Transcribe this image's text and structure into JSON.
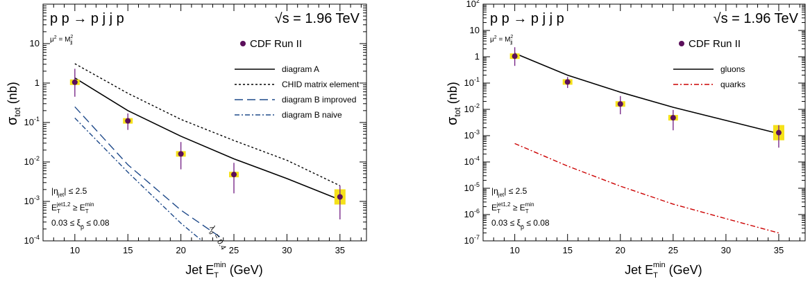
{
  "chart_data": [
    {
      "type": "scatter",
      "process": "p p → p j j p",
      "energy": "√s = 1.96 TeV",
      "scale": "μ² = M²jj",
      "xlabel": "Jet E_T^min (GeV)",
      "ylabel": "σ_tot (nb)",
      "y_scale": "log",
      "xlim": [
        7,
        37.5
      ],
      "ylim": [
        0.0001,
        100
      ],
      "x_ticks": [
        10,
        15,
        20,
        25,
        30,
        35
      ],
      "y_ticks": [
        {
          "v": 0.0001,
          "m": "10",
          "e": "-4"
        },
        {
          "v": 0.001,
          "m": "10",
          "e": "-3"
        },
        {
          "v": 0.01,
          "m": "10",
          "e": "-2"
        },
        {
          "v": 0.1,
          "m": "10",
          "e": "-1"
        },
        {
          "v": 1,
          "m": "1",
          "e": ""
        },
        {
          "v": 10,
          "m": "10",
          "e": ""
        }
      ],
      "cuts": [
        "|η_jet| ≤ 2.5",
        "E_T^jet1,2 ≥ E_T^min",
        "0.03 ≤ ξ_p̄ ≤ 0.08"
      ],
      "curve_label": "λ_g = 0.4",
      "legend_placement": "top-right",
      "data_series": {
        "name": "CDF Run II",
        "points": [
          {
            "x": 10,
            "y": 1.05,
            "ylo": 0.45,
            "yhi": 2.3
          },
          {
            "x": 15,
            "y": 0.11,
            "ylo": 0.065,
            "yhi": 0.17
          },
          {
            "x": 20,
            "y": 0.016,
            "ylo": 0.0065,
            "yhi": 0.032
          },
          {
            "x": 25,
            "y": 0.0048,
            "ylo": 0.0016,
            "yhi": 0.0095
          },
          {
            "x": 35,
            "y": 0.0013,
            "ylo": 0.00035,
            "yhi": 0.0025
          }
        ]
      },
      "series": [
        {
          "name": "diagram A",
          "style": "solid",
          "color": "#000000",
          "x": [
            10,
            15,
            20,
            25,
            30,
            35
          ],
          "y": [
            1.35,
            0.2,
            0.045,
            0.012,
            0.0038,
            0.0011
          ]
        },
        {
          "name": "CHID matrix element",
          "style": "dotted",
          "color": "#000000",
          "x": [
            10,
            15,
            20,
            25,
            30,
            35
          ],
          "y": [
            3.1,
            0.55,
            0.12,
            0.035,
            0.011,
            0.0025
          ]
        },
        {
          "name": "diagram B improved",
          "style": "longdash",
          "color": "#1f4a8a",
          "x": [
            10,
            15,
            20,
            24
          ],
          "y": [
            0.25,
            0.0085,
            0.0006,
            0.00011
          ]
        },
        {
          "name": "diagram B naive",
          "style": "dashdot",
          "color": "#1f4a8a",
          "x": [
            10,
            15,
            20,
            22
          ],
          "y": [
            0.13,
            0.0055,
            0.00028,
            0.0001
          ]
        }
      ]
    },
    {
      "type": "scatter",
      "process": "p p → p j j p",
      "energy": "√s = 1.96 TeV",
      "scale": "μ² = M²jj",
      "xlabel": "Jet E_T^min (GeV)",
      "ylabel": "σ_tot (nb)",
      "y_scale": "log",
      "xlim": [
        7,
        37.5
      ],
      "ylim": [
        1e-07,
        100
      ],
      "x_ticks": [
        10,
        15,
        20,
        25,
        30,
        35
      ],
      "y_ticks": [
        {
          "v": 1e-07,
          "m": "10",
          "e": "-7"
        },
        {
          "v": 1e-06,
          "m": "10",
          "e": "-6"
        },
        {
          "v": 1e-05,
          "m": "10",
          "e": "-5"
        },
        {
          "v": 0.0001,
          "m": "10",
          "e": "-4"
        },
        {
          "v": 0.001,
          "m": "10",
          "e": "-3"
        },
        {
          "v": 0.01,
          "m": "10",
          "e": "-2"
        },
        {
          "v": 0.1,
          "m": "10",
          "e": "-1"
        },
        {
          "v": 1,
          "m": "1",
          "e": ""
        },
        {
          "v": 10,
          "m": "10",
          "e": ""
        },
        {
          "v": 100,
          "m": "10",
          "e": "2"
        }
      ],
      "cuts": [
        "|η_jet| ≤ 2.5",
        "E_T^jet1,2 ≥ E_T^min",
        "0.03 ≤ ξ_p̄ ≤ 0.08"
      ],
      "legend_placement": "top-right",
      "data_series": {
        "name": "CDF Run II",
        "points": [
          {
            "x": 10,
            "y": 1.05,
            "ylo": 0.45,
            "yhi": 2.3
          },
          {
            "x": 15,
            "y": 0.11,
            "ylo": 0.065,
            "yhi": 0.17
          },
          {
            "x": 20,
            "y": 0.016,
            "ylo": 0.0065,
            "yhi": 0.032
          },
          {
            "x": 25,
            "y": 0.0048,
            "ylo": 0.0016,
            "yhi": 0.0095
          },
          {
            "x": 35,
            "y": 0.0013,
            "ylo": 0.00035,
            "yhi": 0.0025
          }
        ]
      },
      "series": [
        {
          "name": "gluons",
          "style": "solid",
          "color": "#000000",
          "x": [
            10,
            15,
            20,
            25,
            30,
            35
          ],
          "y": [
            1.35,
            0.2,
            0.045,
            0.012,
            0.0038,
            0.0012
          ]
        },
        {
          "name": "quarks",
          "style": "dashdot",
          "color": "#cc0000",
          "x": [
            10,
            15,
            20,
            25,
            30,
            35
          ],
          "y": [
            0.0005,
            7e-05,
            1.2e-05,
            2.5e-06,
            7e-07,
            2e-07
          ]
        }
      ]
    }
  ]
}
